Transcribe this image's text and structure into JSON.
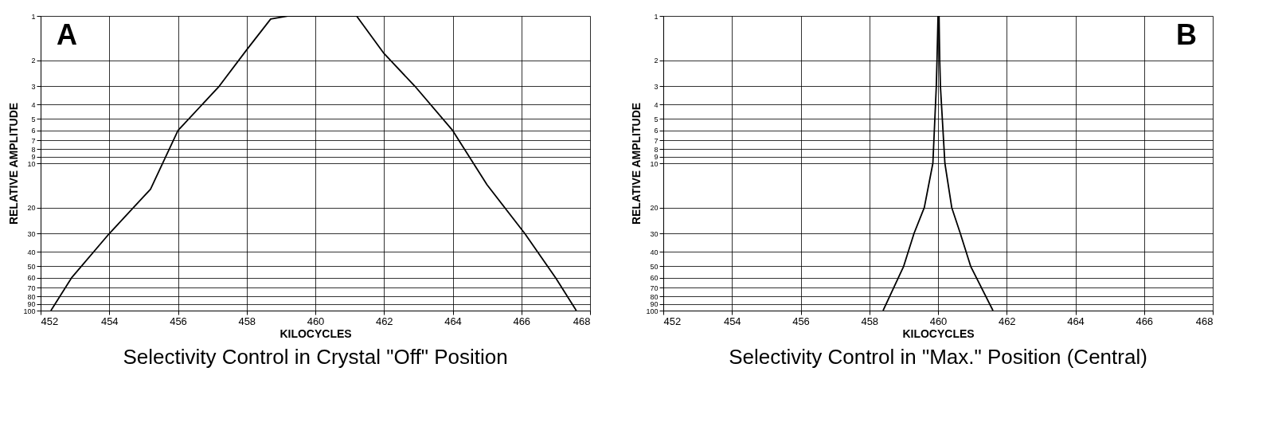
{
  "chart_data": [
    {
      "type": "line",
      "title": "Selectivity Control in Crystal \"Off\" Position",
      "xlabel": "KILOCYCLES",
      "ylabel": "RELATIVE AMPLITUDE",
      "annotations": [
        "A"
      ],
      "series": [
        {
          "color": "#000000",
          "x": [
            452.3,
            452.9,
            454,
            455.2,
            456,
            457.2,
            458,
            458.7,
            459.2,
            460,
            461.2,
            462,
            462.9,
            464,
            465,
            466.1,
            467,
            467.6
          ],
          "values": [
            100,
            60,
            30,
            15,
            6,
            3,
            1.7,
            1.05,
            1,
            1,
            1,
            1.8,
            3,
            6,
            14,
            30,
            60,
            100
          ]
        }
      ],
      "xlim": [
        452,
        468
      ],
      "xticks": [
        452,
        454,
        456,
        458,
        460,
        462,
        464,
        466,
        468
      ],
      "ylim": [
        100,
        1
      ],
      "yticks": [
        1,
        2,
        3,
        4,
        5,
        6,
        7,
        8,
        9,
        10,
        20,
        30,
        40,
        50,
        60,
        70,
        80,
        90,
        100
      ],
      "log": "y",
      "grid": true,
      "marker": "none",
      "line_style": "solid"
    },
    {
      "type": "line",
      "title": "Selectivity Control in \"Max.\" Position (Central)",
      "xlabel": "KILOCYCLES",
      "ylabel": "RELATIVE AMPLITUDE",
      "annotations": [
        "B"
      ],
      "series": [
        {
          "color": "#000000",
          "x": [
            458.4,
            459.0,
            459.3,
            459.6,
            459.85,
            459.95,
            459.97,
            460.0,
            460.03,
            460.05,
            460.07,
            460.2,
            460.4,
            460.65,
            460.95,
            461.6
          ],
          "values": [
            100,
            50,
            30,
            20,
            10,
            3,
            2,
            1,
            1,
            2,
            3,
            10,
            20,
            30,
            50,
            100
          ]
        }
      ],
      "xlim": [
        452,
        468
      ],
      "xticks": [
        452,
        454,
        456,
        458,
        460,
        462,
        464,
        466,
        468
      ],
      "ylim": [
        100,
        1
      ],
      "yticks": [
        1,
        2,
        3,
        4,
        5,
        6,
        7,
        8,
        9,
        10,
        20,
        30,
        40,
        50,
        60,
        70,
        80,
        90,
        100
      ],
      "log": "y",
      "grid": true,
      "marker": "none",
      "line_style": "solid"
    }
  ]
}
